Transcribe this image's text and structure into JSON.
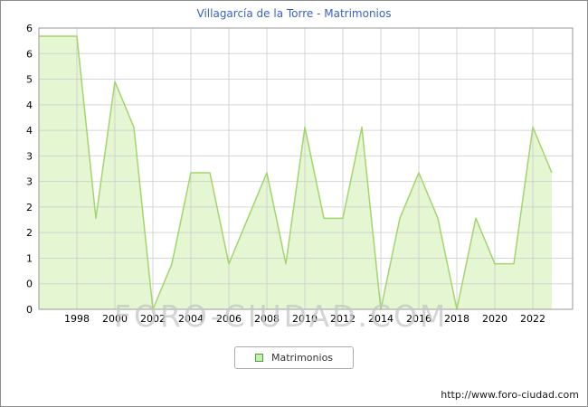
{
  "title": "Villagarcía de la Torre - Matrimonios",
  "watermark": "FORO-CIUDAD.COM",
  "legend": {
    "label": "Matrimonios"
  },
  "footer": {
    "url_text": "http://www.foro-ciudad.com"
  },
  "colors": {
    "title": "#3a62c4",
    "area_fill": "#e4f7d2",
    "line": "#a3d56d",
    "grid": "#cccccc",
    "plot_border": "#9a9a9a",
    "frame_border": "#8c8c8c",
    "legend_swatch_fill": "#c6f0b0",
    "legend_swatch_border": "#4a9e3f",
    "tick_text": "#000000"
  },
  "chart_data": {
    "type": "area",
    "title": "Villagarcía de la Torre - Matrimonios",
    "series_name": "Matrimonios",
    "x": [
      1996,
      1997,
      1998,
      1999,
      2000,
      2001,
      2002,
      2003,
      2004,
      2005,
      2006,
      2007,
      2008,
      2009,
      2010,
      2011,
      2012,
      2013,
      2014,
      2015,
      2016,
      2017,
      2018,
      2019,
      2020,
      2021,
      2022,
      2023
    ],
    "values": [
      6,
      6,
      6,
      2,
      5,
      4,
      0,
      1,
      3,
      3,
      1,
      2,
      3,
      1,
      4,
      2,
      2,
      4,
      0,
      2,
      3,
      2,
      0,
      2,
      1,
      1,
      4,
      3
    ],
    "xlabel": "",
    "ylabel": "",
    "ylim": [
      0,
      6
    ],
    "x_tick_labels": [
      "1998",
      "2000",
      "2002",
      "2004",
      "2006",
      "2008",
      "2010",
      "2012",
      "2014",
      "2016",
      "2018",
      "2020",
      "2022"
    ],
    "y_tick_labels": [
      "6",
      "6",
      "5",
      "4",
      "4",
      "3",
      "3",
      "2",
      "2",
      "1",
      "0",
      "0"
    ],
    "grid": true,
    "legend_position": "bottom-center"
  }
}
